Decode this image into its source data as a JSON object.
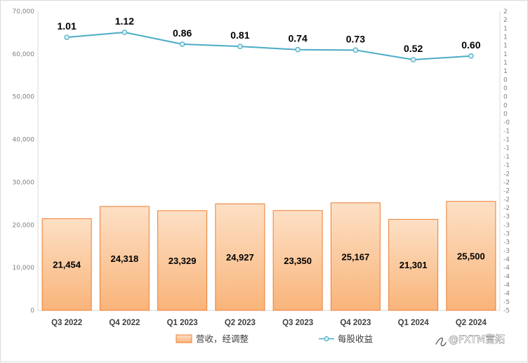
{
  "chart_data": {
    "type": "bar+line",
    "categories": [
      "Q3 2022",
      "Q4 2022",
      "Q1 2023",
      "Q2 2023",
      "Q3 2023",
      "Q4 2023",
      "Q1 2024",
      "Q2 2024"
    ],
    "series": [
      {
        "name": "营收，经调整",
        "type": "bar",
        "axis": "left",
        "values": [
          21454,
          24318,
          23329,
          24927,
          23350,
          25167,
          21301,
          25500
        ],
        "labels": [
          "21,454",
          "24,318",
          "23,329",
          "24,927",
          "23,350",
          "25,167",
          "21,301",
          "25,500"
        ]
      },
      {
        "name": "每股收益",
        "type": "line",
        "axis": "right",
        "values": [
          1.01,
          1.12,
          0.86,
          0.81,
          0.74,
          0.73,
          0.52,
          0.6
        ],
        "labels": [
          "1.01",
          "1.12",
          "0.86",
          "0.81",
          "0.74",
          "0.73",
          "0.52",
          "0.60"
        ]
      }
    ],
    "left_axis": {
      "range": [
        0,
        70000
      ],
      "ticks": [
        "0",
        "10,000",
        "20,000",
        "30,000",
        "40,000",
        "50,000",
        "60,000",
        "70,000"
      ]
    },
    "right_axis": {
      "range": [
        -5,
        2
      ],
      "ticks": [
        "2",
        "2",
        "1",
        "1",
        "1",
        "1",
        "1",
        "1",
        "0",
        "0",
        "0",
        "0",
        "0",
        "-0",
        "-1",
        "-1",
        "-1",
        "-1",
        "-1",
        "-2",
        "-2",
        "-2",
        "-2",
        "-2",
        "-3",
        "-3",
        "-3",
        "-3",
        "-3",
        "-4",
        "-4",
        "-4",
        "-4",
        "-4",
        "-5",
        "-5"
      ]
    },
    "grid": false,
    "legend_position": "bottom",
    "colors": {
      "bar_fill_top": "#fde0c5",
      "bar_fill_bottom": "#f9b47a",
      "bar_stroke": "#ed7d31",
      "line": "#4bacc6",
      "marker_fill": "#dcf0f6"
    }
  },
  "watermark": "@FXTM富拓"
}
